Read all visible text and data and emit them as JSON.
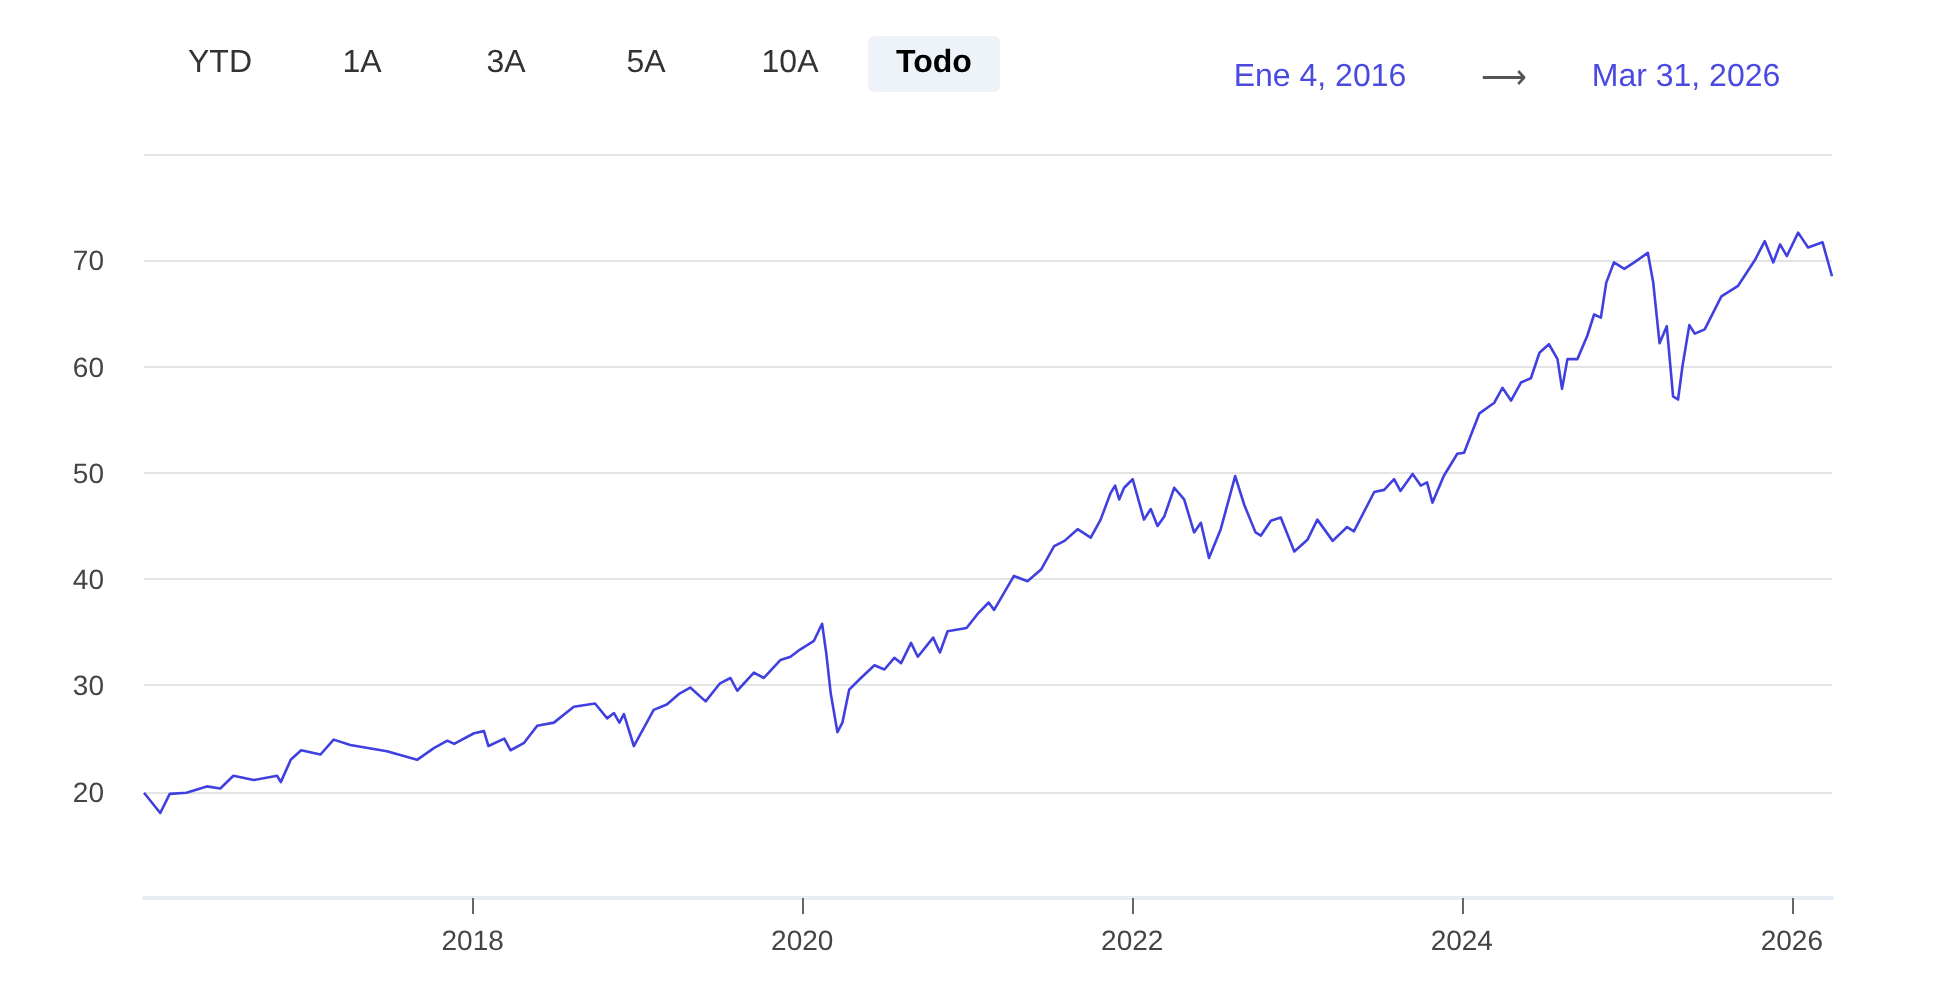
{
  "chart_data": {
    "type": "line",
    "annotations": [
      "YTD",
      "1A",
      "3A",
      "5A",
      "10A",
      "Todo",
      "Ene 4, 2016",
      "⟶",
      "Mar 31, 2026"
    ],
    "x": [
      "2016-01-04",
      "2016-02-09",
      "2016-03-01",
      "2016-04-07",
      "2016-05-22",
      "2016-06-21",
      "2016-07-20",
      "2016-09-03",
      "2016-10-25",
      "2016-11-02",
      "2016-11-24",
      "2016-12-17",
      "2017-01-29",
      "2017-02-27",
      "2017-04-05",
      "2017-06-25",
      "2017-08-31",
      "2017-10-07",
      "2017-11-06",
      "2017-11-21",
      "2018-01-04",
      "2018-01-26",
      "2018-02-05",
      "2018-03-12",
      "2018-03-26",
      "2018-04-25",
      "2018-05-24",
      "2018-06-30",
      "2018-08-13",
      "2018-09-29",
      "2018-10-26",
      "2018-11-10",
      "2018-11-22",
      "2018-12-02",
      "2018-12-24",
      "2019-02-06",
      "2019-03-07",
      "2019-04-03",
      "2019-04-28",
      "2019-06-01",
      "2019-07-03",
      "2019-07-26",
      "2019-08-10",
      "2019-09-16",
      "2019-10-08",
      "2019-11-14",
      "2019-12-06",
      "2019-12-28",
      "2020-01-27",
      "2020-02-14",
      "2020-02-23",
      "2020-03-04",
      "2020-03-19",
      "2020-03-30",
      "2020-04-14",
      "2020-05-10",
      "2020-06-09",
      "2020-07-01",
      "2020-07-23",
      "2020-08-07",
      "2020-08-29",
      "2020-09-13",
      "2020-10-17",
      "2020-11-01",
      "2020-11-18",
      "2020-12-30",
      "2021-01-23",
      "2021-02-17",
      "2021-03-01",
      "2021-03-23",
      "2021-04-14",
      "2021-05-14",
      "2021-06-13",
      "2021-07-12",
      "2021-08-04",
      "2021-09-02",
      "2021-10-01",
      "2021-10-23",
      "2021-11-14",
      "2021-11-24",
      "2021-12-03",
      "2021-12-14",
      "2022-01-02",
      "2022-01-27",
      "2022-02-11",
      "2022-02-26",
      "2022-03-13",
      "2022-04-04",
      "2022-04-26",
      "2022-05-18",
      "2022-06-02",
      "2022-06-20",
      "2022-07-16",
      "2022-08-17",
      "2022-09-06",
      "2022-10-01",
      "2022-10-13",
      "2022-11-04",
      "2022-11-26",
      "2022-12-26",
      "2023-01-24",
      "2023-02-15",
      "2023-03-21",
      "2023-04-22",
      "2023-05-07",
      "2023-06-21",
      "2023-07-13",
      "2023-08-04",
      "2023-08-18",
      "2023-09-14",
      "2023-10-02",
      "2023-10-16",
      "2023-10-28",
      "2023-11-22",
      "2023-12-22",
      "2024-01-06",
      "2024-02-09",
      "2024-03-13",
      "2024-03-31",
      "2024-04-19",
      "2024-05-11",
      "2024-06-02",
      "2024-06-21",
      "2024-07-12",
      "2024-07-31",
      "2024-08-10",
      "2024-08-22",
      "2024-09-13",
      "2024-10-05",
      "2024-10-20",
      "2024-11-04",
      "2024-11-16",
      "2024-12-03",
      "2024-12-26",
      "2025-01-17",
      "2025-02-16",
      "2025-02-28",
      "2025-03-14",
      "2025-03-30",
      "2025-04-13",
      "2025-04-24",
      "2025-05-04",
      "2025-05-19",
      "2025-05-31",
      "2025-06-22",
      "2025-07-29",
      "2025-09-04",
      "2025-10-11",
      "2025-11-02",
      "2025-11-21",
      "2025-12-06",
      "2025-12-21",
      "2026-01-15",
      "2026-02-06",
      "2026-03-10",
      "2026-03-31"
    ],
    "series": [
      {
        "color": "#4040e0",
        "values": [
          19.9,
          18.0,
          19.8,
          19.9,
          20.5,
          20.3,
          21.5,
          21.1,
          21.5,
          20.9,
          23.0,
          23.9,
          23.5,
          24.9,
          24.4,
          23.8,
          23.0,
          24.1,
          24.8,
          24.5,
          25.5,
          25.7,
          24.3,
          25.0,
          23.9,
          24.6,
          26.2,
          26.5,
          28.0,
          28.3,
          26.9,
          27.4,
          26.5,
          27.3,
          24.3,
          27.7,
          28.2,
          29.2,
          29.8,
          28.5,
          30.2,
          30.7,
          29.5,
          31.2,
          30.7,
          32.4,
          32.7,
          33.4,
          34.2,
          35.8,
          33.1,
          29.3,
          25.6,
          26.5,
          29.6,
          30.7,
          31.9,
          31.5,
          32.6,
          32.1,
          34.0,
          32.7,
          34.5,
          33.1,
          35.1,
          35.4,
          36.7,
          37.8,
          37.1,
          38.7,
          40.3,
          39.8,
          40.9,
          43.1,
          43.6,
          44.7,
          43.9,
          45.6,
          48.1,
          48.8,
          47.5,
          48.6,
          49.4,
          45.6,
          46.6,
          45.0,
          45.9,
          48.6,
          47.5,
          44.4,
          45.3,
          42.0,
          44.7,
          49.7,
          47.0,
          44.4,
          44.1,
          45.5,
          45.8,
          42.6,
          43.7,
          45.6,
          43.6,
          44.9,
          44.5,
          48.2,
          48.4,
          49.4,
          48.3,
          49.9,
          48.8,
          49.1,
          47.2,
          49.7,
          51.8,
          51.9,
          55.6,
          56.6,
          58.0,
          56.8,
          58.5,
          58.9,
          61.3,
          62.1,
          60.7,
          57.9,
          60.7,
          60.7,
          62.9,
          64.9,
          64.6,
          67.9,
          69.8,
          69.2,
          69.8,
          70.7,
          67.9,
          62.2,
          63.8,
          57.2,
          56.9,
          60.1,
          63.9,
          63.1,
          63.5,
          66.6,
          67.6,
          70.0,
          71.8,
          69.8,
          71.5,
          70.4,
          72.6,
          71.2,
          71.7,
          68.5
        ]
      }
    ],
    "xlim": [
      "2016-01-04",
      "2026-03-31"
    ],
    "xticks": [
      {
        "value": "2018-01-01",
        "label": "2018"
      },
      {
        "value": "2020-01-01",
        "label": "2020"
      },
      {
        "value": "2022-01-01",
        "label": "2022"
      },
      {
        "value": "2024-01-01",
        "label": "2024"
      },
      {
        "value": "2026-01-01",
        "label": "2026"
      }
    ],
    "ylim": [
      10,
      80
    ],
    "yticks": [
      {
        "value": 10,
        "label": null
      },
      20,
      30,
      40,
      50,
      60,
      70,
      {
        "value": 80,
        "label": null
      }
    ],
    "grid": "y",
    "marker": "none",
    "line_style": "solid"
  }
}
